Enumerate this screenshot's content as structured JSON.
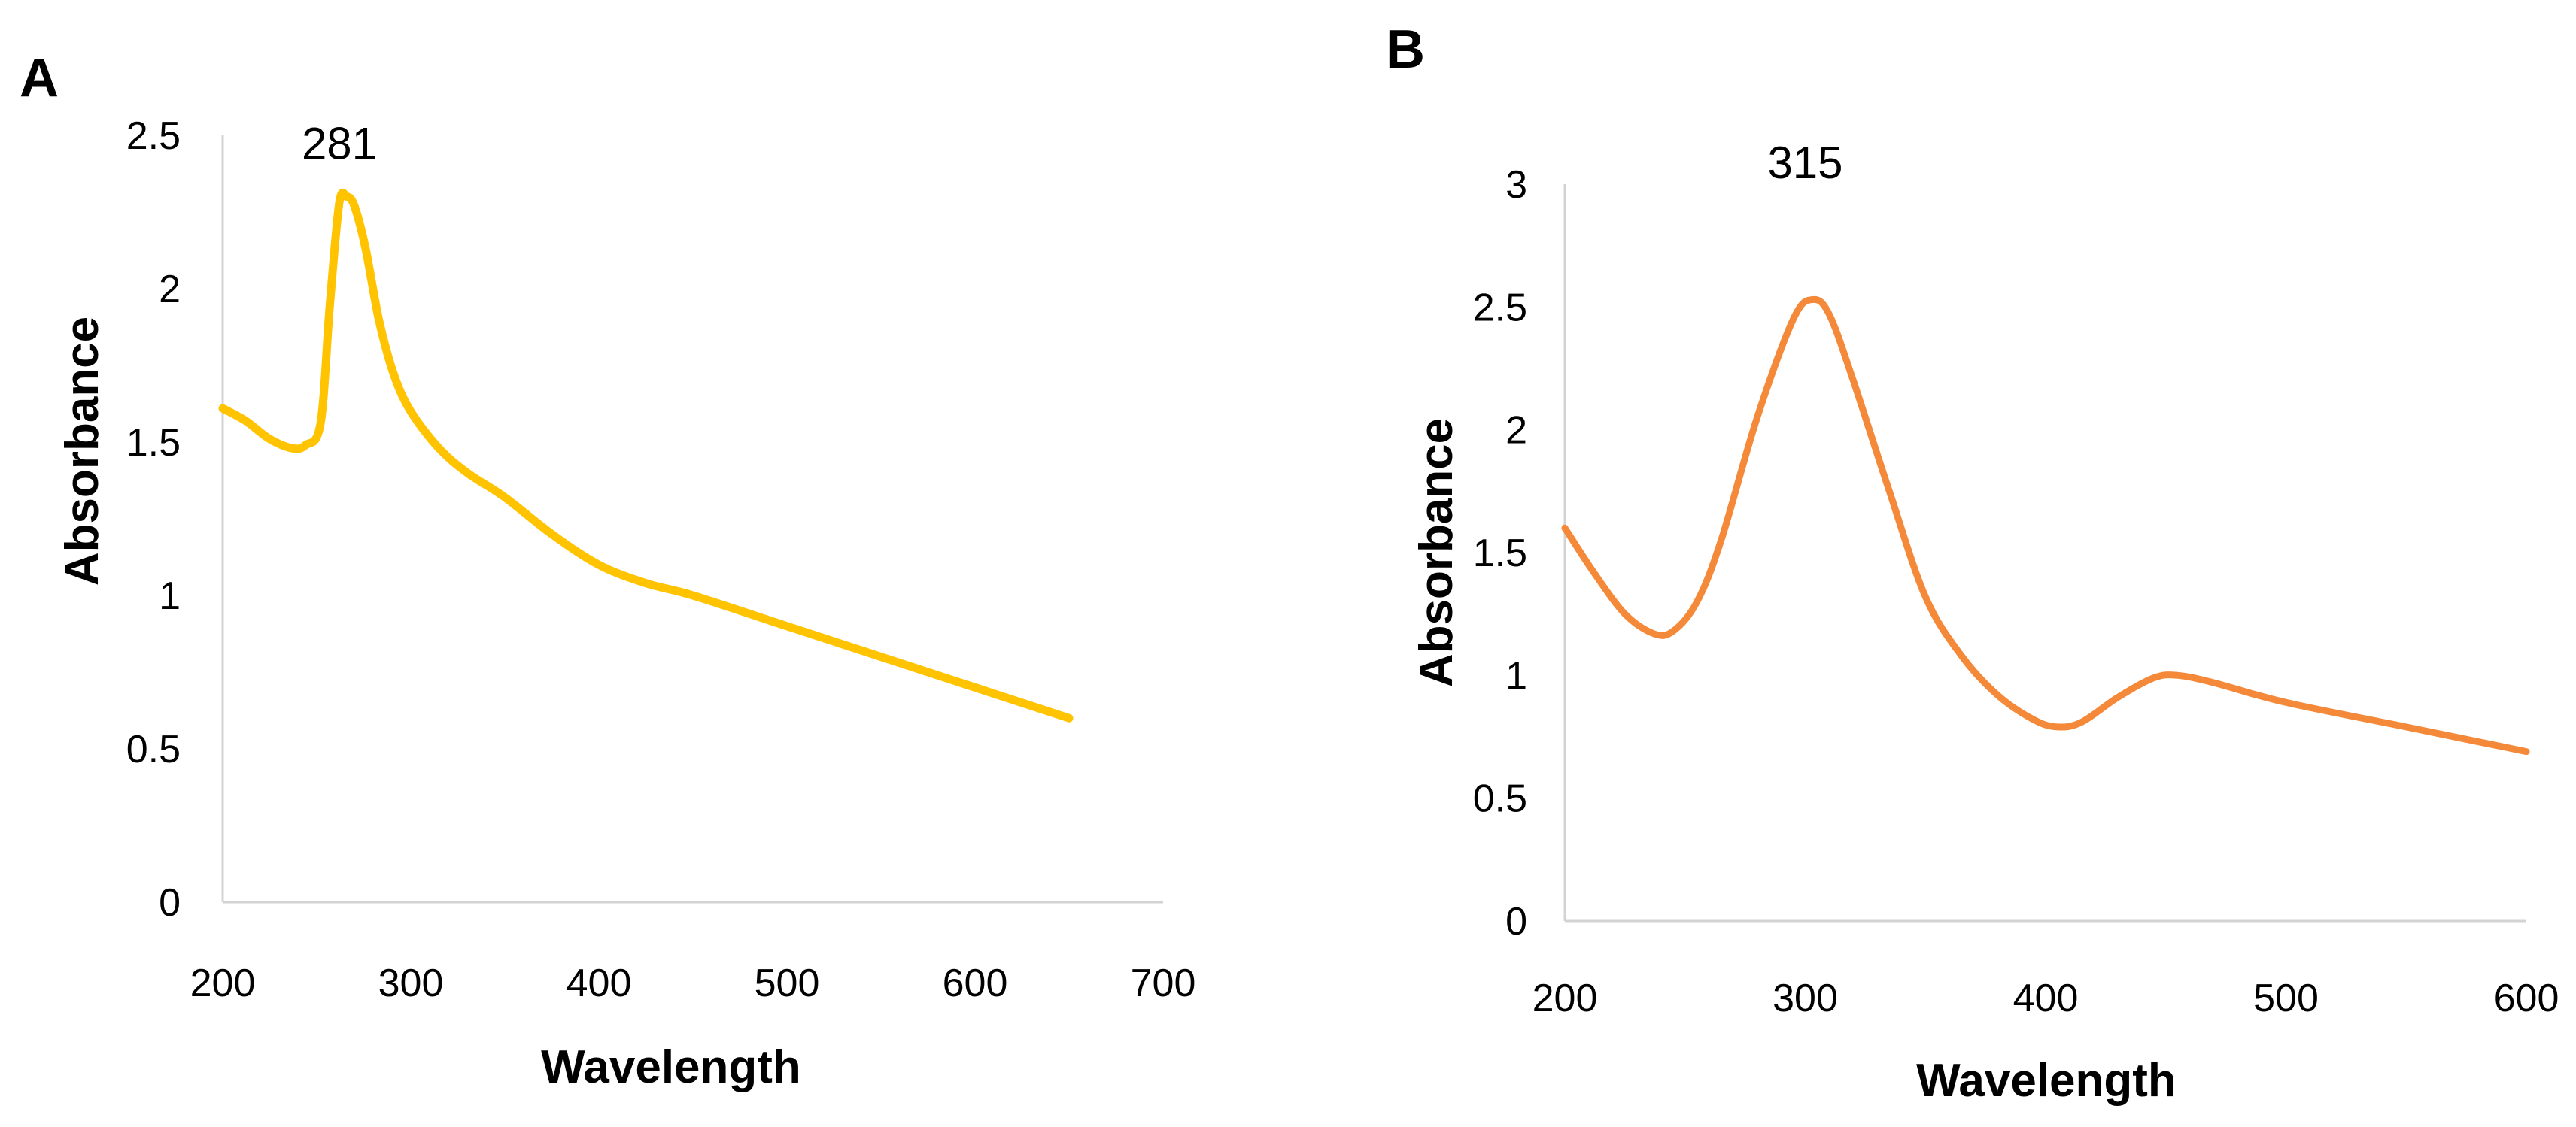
{
  "chart_data": [
    {
      "type": "line",
      "panel_label": "A",
      "xlabel": "Wavelength",
      "ylabel": "Absorbance",
      "xlim": [
        200,
        700
      ],
      "ylim": [
        0,
        2.5
      ],
      "x_ticks": [
        200,
        300,
        400,
        500,
        600,
        700
      ],
      "y_ticks": [
        0,
        0.5,
        1,
        1.5,
        2,
        2.5
      ],
      "y_tick_labels": [
        "0",
        "0.5",
        "1",
        "1.5",
        "2",
        "2.5"
      ],
      "grid": false,
      "color": "#FFC300",
      "annotation": {
        "text": "281",
        "x": 262,
        "y": 2.3
      },
      "series": [
        {
          "name": "Absorbance",
          "x": [
            200,
            212,
            225,
            237,
            244,
            252,
            257,
            262,
            266,
            270,
            276,
            283,
            291,
            300,
            315,
            330,
            350,
            375,
            400,
            425,
            450,
            500,
            550,
            600,
            650
          ],
          "y": [
            1.61,
            1.57,
            1.51,
            1.48,
            1.49,
            1.56,
            1.95,
            2.28,
            2.3,
            2.27,
            2.13,
            1.9,
            1.72,
            1.6,
            1.48,
            1.4,
            1.32,
            1.2,
            1.1,
            1.04,
            1.0,
            0.9,
            0.8,
            0.7,
            0.6
          ]
        }
      ]
    },
    {
      "type": "line",
      "panel_label": "B",
      "xlabel": "Wavelength",
      "ylabel": "Absorbance",
      "xlim": [
        200,
        600
      ],
      "ylim": [
        0,
        3
      ],
      "x_ticks": [
        200,
        300,
        400,
        500,
        600
      ],
      "y_ticks": [
        0,
        0.5,
        1,
        1.5,
        2,
        2.5,
        3
      ],
      "y_tick_labels": [
        "0",
        "0.5",
        "1",
        "1.5",
        "2",
        "2.5",
        "3"
      ],
      "grid": false,
      "color": "#F5893A",
      "annotation": {
        "text": "315",
        "x": 300,
        "y": 2.78
      },
      "series": [
        {
          "name": "Absorbance",
          "x": [
            200,
            212,
            225,
            237,
            245,
            255,
            265,
            280,
            295,
            303,
            310,
            320,
            335,
            350,
            365,
            380,
            395,
            405,
            415,
            430,
            445,
            455,
            470,
            500,
            550,
            600
          ],
          "y": [
            1.6,
            1.42,
            1.25,
            1.17,
            1.18,
            1.3,
            1.55,
            2.05,
            2.45,
            2.53,
            2.47,
            2.2,
            1.75,
            1.32,
            1.08,
            0.92,
            0.82,
            0.79,
            0.81,
            0.91,
            0.99,
            1.0,
            0.97,
            0.89,
            0.79,
            0.69
          ]
        }
      ]
    }
  ]
}
